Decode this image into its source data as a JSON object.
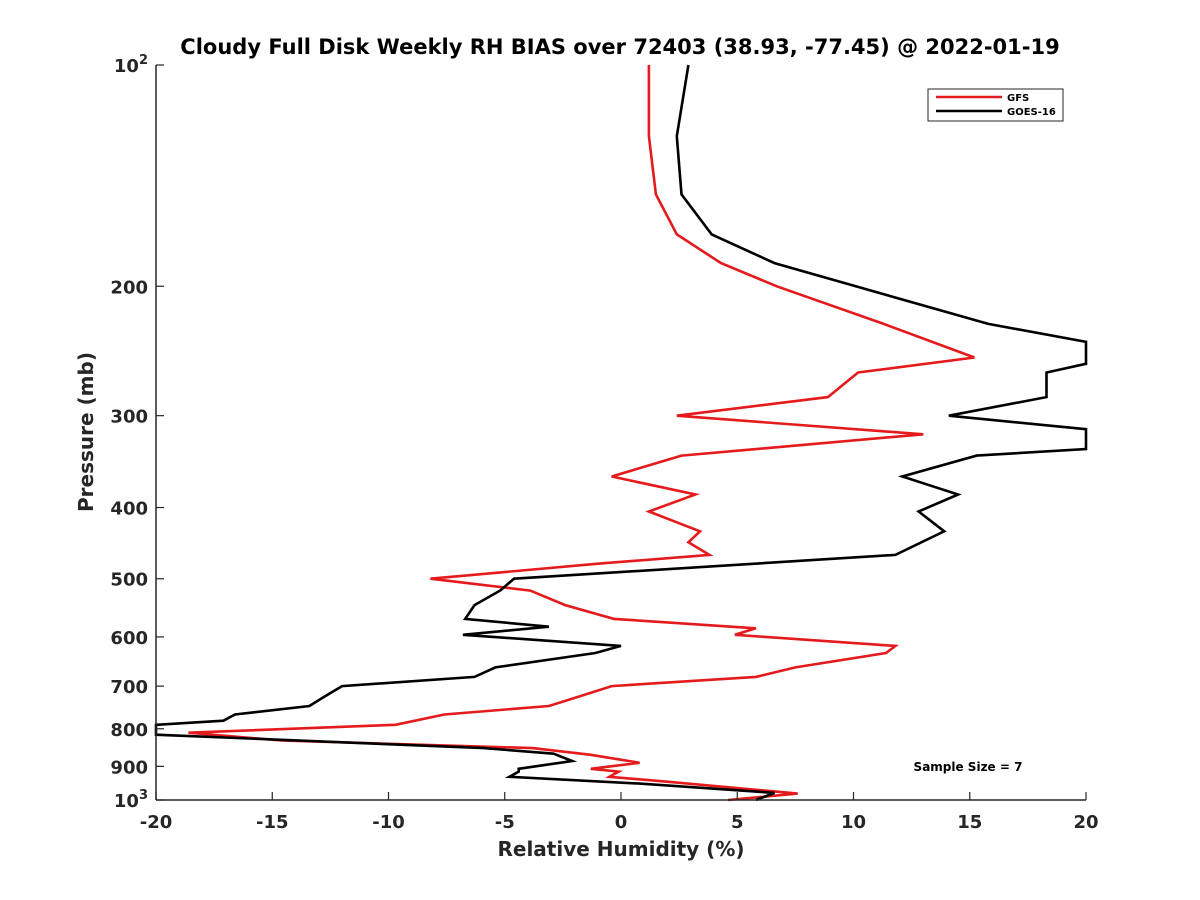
{
  "chart_data": {
    "type": "line",
    "title": "Cloudy Full Disk Weekly RH BIAS over 72403 (38.93, -77.45) @ 2022-01-19",
    "xlabel": "Relative Humidity (%)",
    "ylabel": "Pressure (mb)",
    "xlim": [
      -20,
      20
    ],
    "ylim": [
      100,
      1000
    ],
    "yscale": "log",
    "y_reversed": true,
    "grid": false,
    "legend_position": "top-right",
    "x_ticks": [
      "-20",
      "-15",
      "-10",
      "-5",
      "0",
      "5",
      "10",
      "15",
      "20"
    ],
    "y_ticks": [
      {
        "value": 100,
        "base": "10",
        "exp": "2"
      },
      {
        "value": 200,
        "label": "200"
      },
      {
        "value": 300,
        "label": "300"
      },
      {
        "value": 400,
        "label": "400"
      },
      {
        "value": 500,
        "label": "500"
      },
      {
        "value": 600,
        "label": "600"
      },
      {
        "value": 700,
        "label": "700"
      },
      {
        "value": 800,
        "label": "800"
      },
      {
        "value": 900,
        "label": "900"
      },
      {
        "value": 1000,
        "base": "10",
        "exp": "3"
      }
    ],
    "annotation": "Sample Size = 7",
    "series": [
      {
        "name": "GFS",
        "color": "#e41a1c",
        "points": [
          [
            1.2,
            100
          ],
          [
            1.2,
            125
          ],
          [
            1.5,
            150
          ],
          [
            2.4,
            170
          ],
          [
            4.3,
            186
          ],
          [
            6.7,
            200
          ],
          [
            11.3,
            225
          ],
          [
            15.2,
            250
          ],
          [
            10.2,
            262
          ],
          [
            8.9,
            283
          ],
          [
            2.4,
            300
          ],
          [
            13.0,
            318
          ],
          [
            2.6,
            340
          ],
          [
            -0.4,
            363
          ],
          [
            3.2,
            384
          ],
          [
            1.2,
            405
          ],
          [
            3.4,
            431
          ],
          [
            2.9,
            446
          ],
          [
            3.8,
            464
          ],
          [
            -1.0,
            477
          ],
          [
            -8.2,
            500
          ],
          [
            -3.9,
            519
          ],
          [
            -2.4,
            543
          ],
          [
            -0.3,
            567
          ],
          [
            5.8,
            584
          ],
          [
            4.9,
            596
          ],
          [
            11.8,
            617
          ],
          [
            11.4,
            631
          ],
          [
            7.5,
            660
          ],
          [
            5.8,
            680
          ],
          [
            -0.4,
            700
          ],
          [
            -1.9,
            725
          ],
          [
            -3.1,
            745
          ],
          [
            -7.6,
            765
          ],
          [
            -9.7,
            790
          ],
          [
            -18.6,
            810
          ],
          [
            -14.6,
            830
          ],
          [
            -3.8,
            850
          ],
          [
            -1.3,
            868
          ],
          [
            0.8,
            890
          ],
          [
            -1.3,
            907
          ],
          [
            -0.1,
            915
          ],
          [
            -0.5,
            930
          ],
          [
            2.1,
            945
          ],
          [
            7.6,
            980
          ],
          [
            4.6,
            1000
          ]
        ]
      },
      {
        "name": "GOES-16",
        "color": "#000000",
        "points": [
          [
            2.9,
            100
          ],
          [
            2.4,
            125
          ],
          [
            2.6,
            150
          ],
          [
            3.9,
            170
          ],
          [
            6.6,
            186
          ],
          [
            10.1,
            200
          ],
          [
            15.8,
            225
          ],
          [
            20.0,
            238
          ],
          [
            20.0,
            255
          ],
          [
            18.3,
            262
          ],
          [
            18.3,
            283
          ],
          [
            14.1,
            300
          ],
          [
            20.0,
            313
          ],
          [
            20.0,
            333
          ],
          [
            15.3,
            340
          ],
          [
            12.1,
            363
          ],
          [
            14.5,
            384
          ],
          [
            12.8,
            405
          ],
          [
            13.9,
            431
          ],
          [
            11.8,
            464
          ],
          [
            -4.6,
            500
          ],
          [
            -5.2,
            519
          ],
          [
            -6.3,
            543
          ],
          [
            -6.7,
            567
          ],
          [
            -3.1,
            581
          ],
          [
            -6.8,
            596
          ],
          [
            0.0,
            617
          ],
          [
            -1.1,
            631
          ],
          [
            -5.4,
            660
          ],
          [
            -6.3,
            680
          ],
          [
            -12.0,
            700
          ],
          [
            -12.8,
            725
          ],
          [
            -13.4,
            745
          ],
          [
            -16.6,
            765
          ],
          [
            -17.1,
            780
          ],
          [
            -20.0,
            790
          ],
          [
            -20.0,
            815
          ],
          [
            -5.9,
            850
          ],
          [
            -2.9,
            865
          ],
          [
            -2.1,
            885
          ],
          [
            -4.4,
            907
          ],
          [
            -4.4,
            915
          ],
          [
            -4.8,
            930
          ],
          [
            0.8,
            950
          ],
          [
            6.6,
            978
          ],
          [
            5.8,
            1000
          ]
        ]
      }
    ]
  }
}
